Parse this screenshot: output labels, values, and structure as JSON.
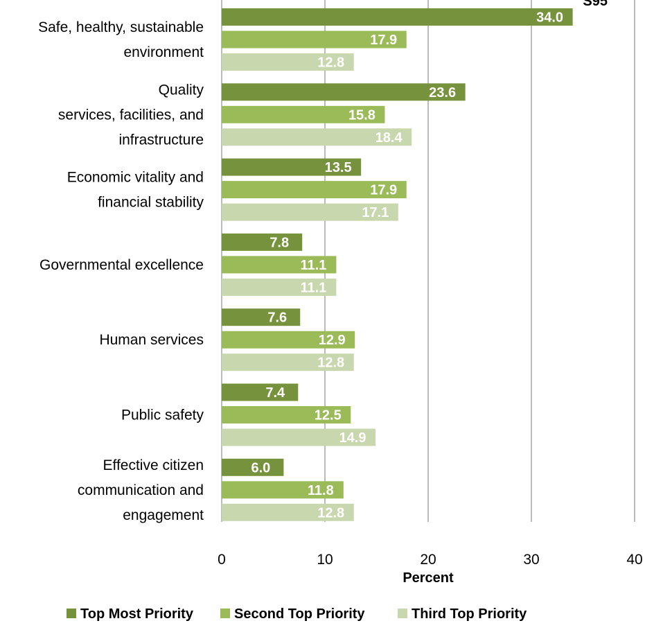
{
  "chart_data": {
    "type": "bar",
    "orientation": "horizontal",
    "corner_text": "S95",
    "categories": [
      [
        "Safe, healthy, sustainable",
        "environment"
      ],
      [
        "Quality",
        "services, facilities, and",
        "infrastructure"
      ],
      [
        "Economic vitality and",
        "financial stability"
      ],
      [
        "Governmental excellence"
      ],
      [
        "Human services"
      ],
      [
        "Public safety"
      ],
      [
        "Effective citizen",
        "communication and",
        "engagement"
      ]
    ],
    "series": [
      {
        "name": "Top Most Priority",
        "color": "#76923c",
        "values": [
          34.0,
          23.6,
          13.5,
          7.8,
          7.6,
          7.4,
          6.0
        ]
      },
      {
        "name": "Second Top Priority",
        "color": "#9bbb59",
        "values": [
          17.9,
          15.8,
          17.9,
          11.1,
          12.9,
          12.5,
          11.8
        ]
      },
      {
        "name": "Third Top Priority",
        "color": "#c9d7ae",
        "values": [
          12.8,
          18.4,
          17.1,
          11.1,
          12.8,
          14.9,
          12.8
        ]
      }
    ],
    "xlabel": "Percent",
    "ylabel": "",
    "xlim": [
      0,
      40
    ],
    "xticks": [
      "0",
      "10",
      "20",
      "30",
      "40"
    ],
    "grid": "vertical",
    "legend": "bottom"
  }
}
